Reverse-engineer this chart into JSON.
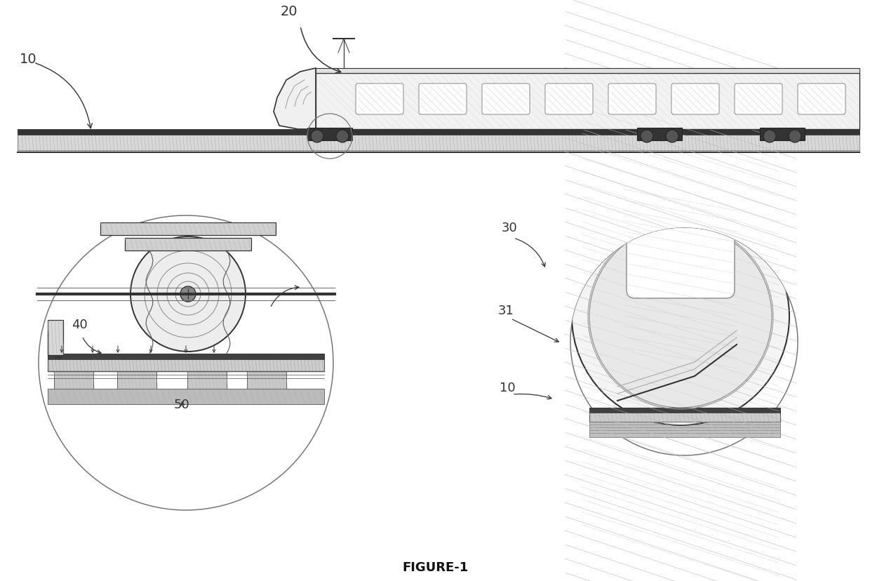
{
  "bg_color": "#ffffff",
  "line_color": "#333333",
  "label_10_top": "10",
  "label_20": "20",
  "label_40": "40",
  "label_50": "50",
  "label_30": "30",
  "label_31": "31",
  "label_10b": "10",
  "figure_label": "FIGURE-1"
}
